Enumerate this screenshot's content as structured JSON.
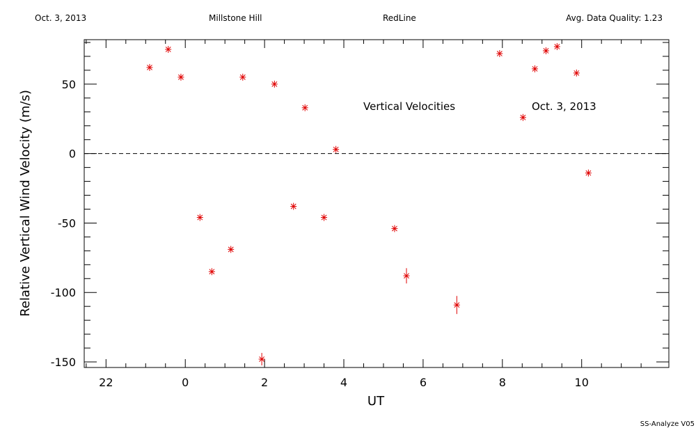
{
  "header": {
    "date": "Oct. 3, 2013",
    "site": "Millstone Hill",
    "instrument": "RedLine",
    "quality": "Avg. Data Quality: 1.23"
  },
  "footer": {
    "software": "SS-Analyze V05"
  },
  "colors": {
    "marker": "#e00000",
    "axes": "#000000"
  },
  "chart_data": {
    "type": "scatter",
    "xlabel": "UT",
    "ylabel": "Relative Vertical Wind Velocity (m/s)",
    "xlim": [
      -2.55,
      12.2
    ],
    "ylim": [
      -154,
      82
    ],
    "x_ticks": [
      22,
      0,
      2,
      4,
      6,
      8,
      10
    ],
    "y_ticks": [
      -150,
      -100,
      -50,
      0,
      50
    ],
    "zero_line": "dashed",
    "grid": false,
    "annotations": [
      "Vertical Velocities",
      "Oct. 3, 2013"
    ],
    "series": [
      {
        "marker": "asterisk",
        "x": [
          -0.9,
          -0.43,
          -0.11,
          0.37,
          0.67,
          1.15,
          1.45,
          1.93,
          2.25,
          2.73,
          3.02,
          3.5,
          3.8,
          5.28,
          5.58,
          6.85,
          7.93,
          8.52,
          8.82,
          9.1,
          9.38,
          9.87,
          10.17
        ],
        "y": [
          62,
          75,
          55,
          -46,
          -85,
          -69,
          55,
          -148,
          50,
          -38,
          33,
          -46,
          3,
          -54,
          -88,
          -109,
          72,
          26,
          61,
          74,
          77,
          58,
          -14
        ],
        "error": [
          2,
          2,
          2,
          2,
          2,
          2,
          2,
          4,
          2,
          2,
          2,
          2,
          2,
          2,
          5,
          6,
          2,
          2,
          2,
          2,
          2,
          2,
          2
        ]
      }
    ]
  }
}
